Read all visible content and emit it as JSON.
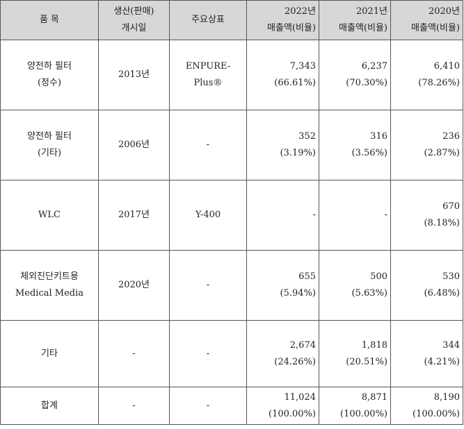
{
  "headers": {
    "item": "품 목",
    "start_l1": "생산(판매)",
    "start_l2": "개시일",
    "brand": "주요상표",
    "y2022_l1": "2022년",
    "y2022_l2": "매출액(비율)",
    "y2021_l1": "2021년",
    "y2021_l2": "매출액(비율)",
    "y2020_l1": "2020년",
    "y2020_l2": "매출액(비율)"
  },
  "rows": [
    {
      "item": [
        "양전하 필터",
        "(정수)"
      ],
      "start": "2013년",
      "brand": "ENPURE-Plus®",
      "y2022": {
        "amount": "7,343",
        "ratio": "(66.61%)"
      },
      "y2021": {
        "amount": "6,237",
        "ratio": "(70.30%)"
      },
      "y2020": {
        "amount": "6,410",
        "ratio": "(78.26%)"
      }
    },
    {
      "item": [
        "양전하 필터",
        "(기타)"
      ],
      "start": "2006년",
      "brand": "-",
      "y2022": {
        "amount": "352",
        "ratio": "(3.19%)"
      },
      "y2021": {
        "amount": "316",
        "ratio": "(3.56%)"
      },
      "y2020": {
        "amount": "236",
        "ratio": "(2.87%)"
      }
    },
    {
      "item": [
        "WLC"
      ],
      "start": "2017년",
      "brand": "Y-400",
      "y2022": {
        "amount": "-"
      },
      "y2021": {
        "amount": "-"
      },
      "y2020": {
        "amount": "670",
        "ratio": "(8.18%)"
      }
    },
    {
      "item": [
        "체외진단키트용",
        "Medical Media"
      ],
      "start": "2020년",
      "brand": "-",
      "y2022": {
        "amount": "655",
        "ratio": "(5.94%)"
      },
      "y2021": {
        "amount": "500",
        "ratio": "(5.63%)"
      },
      "y2020": {
        "amount": "530",
        "ratio": "(6.48%)"
      }
    },
    {
      "item": [
        "기타"
      ],
      "start": "-",
      "brand": "-",
      "y2022": {
        "amount": "2,674",
        "ratio": "(24.26%)"
      },
      "y2021": {
        "amount": "1,818",
        "ratio": "(20.51%)"
      },
      "y2020": {
        "amount": "344",
        "ratio": "(4.21%)"
      }
    },
    {
      "item": [
        "합계"
      ],
      "start": "-",
      "brand": "-",
      "y2022": {
        "amount": "11,024",
        "ratio": "(100.00%)"
      },
      "y2021": {
        "amount": "8,871",
        "ratio": "(100.00%)"
      },
      "y2020": {
        "amount": "8,190",
        "ratio": "(100.00%)"
      }
    }
  ]
}
